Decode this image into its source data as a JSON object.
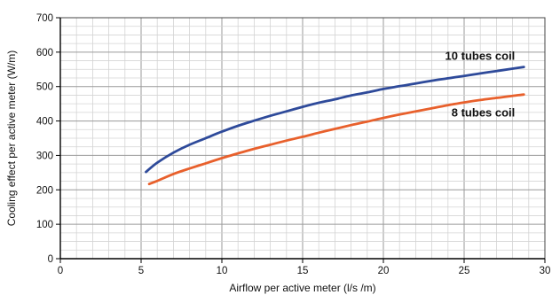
{
  "chart_data": {
    "type": "line",
    "title": "",
    "xlabel": "Airflow per active meter (l/s /m)",
    "ylabel": "Cooling effect per active meter (W/m)",
    "xlim": [
      0,
      30
    ],
    "ylim": [
      0,
      700
    ],
    "xticks": [
      0,
      5,
      10,
      15,
      20,
      25,
      30
    ],
    "yticks": [
      0,
      100,
      200,
      300,
      400,
      500,
      600,
      700
    ],
    "grid": true,
    "legend": "inline labels near line ends",
    "series": [
      {
        "name": "10 tubes coil",
        "color": "#2e4a9a",
        "x": [
          5.3,
          6,
          7,
          8,
          9,
          10,
          11,
          12,
          13,
          14,
          15,
          16,
          17,
          18,
          19,
          20,
          21,
          22,
          23,
          24,
          25,
          26,
          27,
          28,
          28.7
        ],
        "y": [
          252,
          279,
          308,
          331,
          350,
          369,
          386,
          401,
          415,
          428,
          441,
          453,
          463,
          474,
          483,
          493,
          501,
          509,
          517,
          524,
          531,
          538,
          545,
          552,
          557
        ]
      },
      {
        "name": "8 tubes coil",
        "color": "#e8602c",
        "x": [
          5.5,
          6,
          7,
          8,
          9,
          10,
          11,
          12,
          13,
          14,
          15,
          16,
          17,
          18,
          19,
          20,
          21,
          22,
          23,
          24,
          25,
          26,
          27,
          28,
          28.7
        ],
        "y": [
          217,
          226,
          246,
          262,
          277,
          292,
          306,
          319,
          331,
          343,
          354,
          366,
          377,
          388,
          398,
          409,
          419,
          428,
          437,
          446,
          454,
          461,
          467,
          473,
          477
        ]
      }
    ]
  }
}
